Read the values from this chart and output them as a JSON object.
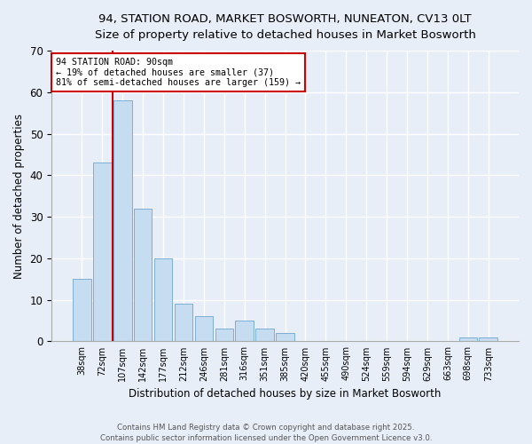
{
  "title_line1": "94, STATION ROAD, MARKET BOSWORTH, NUNEATON, CV13 0LT",
  "title_line2": "Size of property relative to detached houses in Market Bosworth",
  "xlabel": "Distribution of detached houses by size in Market Bosworth",
  "ylabel": "Number of detached properties",
  "categories": [
    "38sqm",
    "72sqm",
    "107sqm",
    "142sqm",
    "177sqm",
    "212sqm",
    "246sqm",
    "281sqm",
    "316sqm",
    "351sqm",
    "385sqm",
    "420sqm",
    "455sqm",
    "490sqm",
    "524sqm",
    "559sqm",
    "594sqm",
    "629sqm",
    "663sqm",
    "698sqm",
    "733sqm"
  ],
  "values": [
    15,
    43,
    58,
    32,
    20,
    9,
    6,
    3,
    5,
    3,
    2,
    0,
    0,
    0,
    0,
    0,
    0,
    0,
    0,
    1,
    1
  ],
  "bar_color": "#c6dcf0",
  "bar_edge_color": "#7bafd4",
  "ylim": [
    0,
    70
  ],
  "yticks": [
    0,
    10,
    20,
    30,
    40,
    50,
    60,
    70
  ],
  "property_label": "94 STATION ROAD: 90sqm",
  "property_note1": "← 19% of detached houses are smaller (37)",
  "property_note2": "81% of semi-detached houses are larger (159) →",
  "vline_x": 1.5,
  "vline_color": "#cc0000",
  "annotation_box_color": "#ffffff",
  "annotation_border_color": "#cc0000",
  "footer1": "Contains HM Land Registry data © Crown copyright and database right 2025.",
  "footer2": "Contains public sector information licensed under the Open Government Licence v3.0.",
  "background_color": "#e8eef8",
  "grid_color": "#ffffff"
}
